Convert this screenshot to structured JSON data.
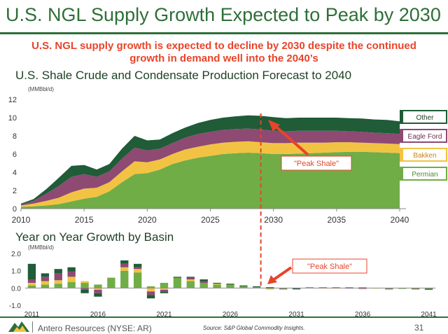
{
  "header": {
    "title": "U.S. NGL Supply Growth Expected to Peak by 2030",
    "subtitle_line1": "U.S. NGL supply growth is expected to decline by 2030 despite the continued",
    "subtitle_line2": "growth in demand well into the 2040’s"
  },
  "footer": {
    "company": "Antero Resources (NYSE: AR)",
    "source": "Source: S&P Global Commodity Insights.",
    "page": "31"
  },
  "colors": {
    "permian": "#70ad47",
    "bakken": "#f2c343",
    "eagle_ford": "#8e4a72",
    "other": "#1f5c37",
    "accent": "#e8442a",
    "title_green": "#2e6f38"
  },
  "chart_data": [
    {
      "type": "area",
      "title": "U.S. Shale Crude and Condensate Production Forecast to 2040",
      "ylabel": "(MMBbl/d)",
      "xlabel": "",
      "xlim": [
        2010,
        2040.5
      ],
      "ylim": [
        0,
        12
      ],
      "xticks": [
        2010,
        2015,
        2020,
        2025,
        2030,
        2035,
        2040
      ],
      "yticks": [
        0,
        2,
        4,
        6,
        8,
        10,
        12
      ],
      "x": [
        2010,
        2011,
        2012,
        2013,
        2014,
        2015,
        2016,
        2017,
        2018,
        2019,
        2020,
        2021,
        2022,
        2023,
        2024,
        2025,
        2026,
        2027,
        2028,
        2029,
        2030,
        2031,
        2032,
        2033,
        2034,
        2035,
        2036,
        2037,
        2038,
        2039,
        2040
      ],
      "series": [
        {
          "name": "Permian",
          "values": [
            0.2,
            0.25,
            0.35,
            0.5,
            0.8,
            1.1,
            1.3,
            1.9,
            2.9,
            3.8,
            3.9,
            4.3,
            4.9,
            5.3,
            5.6,
            5.8,
            6.0,
            6.1,
            6.15,
            6.1,
            6.0,
            6.0,
            6.05,
            6.1,
            6.15,
            6.2,
            6.25,
            6.25,
            6.2,
            6.15,
            6.1
          ]
        },
        {
          "name": "Bakken",
          "values": [
            0.15,
            0.3,
            0.5,
            0.7,
            1.0,
            1.1,
            1.0,
            1.0,
            1.2,
            1.4,
            1.2,
            1.1,
            1.1,
            1.2,
            1.2,
            1.25,
            1.25,
            1.25,
            1.25,
            1.2,
            1.2,
            1.2,
            1.2,
            1.15,
            1.1,
            1.1,
            1.05,
            1.0,
            1.0,
            1.0,
            1.0
          ]
        },
        {
          "name": "Eagle Ford",
          "values": [
            0.1,
            0.3,
            0.8,
            1.3,
            1.7,
            1.6,
            1.2,
            1.2,
            1.4,
            1.5,
            1.3,
            1.2,
            1.2,
            1.3,
            1.4,
            1.4,
            1.4,
            1.4,
            1.4,
            1.4,
            1.35,
            1.3,
            1.3,
            1.3,
            1.3,
            1.25,
            1.2,
            1.2,
            1.15,
            1.15,
            1.1
          ]
        },
        {
          "name": "Other",
          "values": [
            0.1,
            0.2,
            0.5,
            0.9,
            1.2,
            1.0,
            0.8,
            0.8,
            1.1,
            1.3,
            1.1,
            1.0,
            1.1,
            1.1,
            1.2,
            1.3,
            1.35,
            1.4,
            1.45,
            1.5,
            1.5,
            1.45,
            1.45,
            1.45,
            1.45,
            1.45,
            1.45,
            1.45,
            1.45,
            1.45,
            1.4
          ]
        }
      ],
      "legend_order": [
        "Other",
        "Eagle Ford",
        "Bakken",
        "Permian"
      ],
      "legend_position": "right",
      "annotation": {
        "label": "\"Peak Shale\"",
        "x": 2029
      }
    },
    {
      "type": "bar",
      "stacked": true,
      "title": "Year on Year Growth by Basin",
      "ylabel": "(MMBbl/d)",
      "xlabel": "",
      "ylim": [
        -1.0,
        2.0
      ],
      "yticks": [
        -1.0,
        0.0,
        1.0,
        2.0
      ],
      "ytick_labels": [
        "-1.0",
        "0.0",
        "1.0",
        "2.0"
      ],
      "xticks": [
        2011,
        2016,
        2021,
        2026,
        2031,
        2036,
        2041
      ],
      "categories": [
        2011,
        2012,
        2013,
        2014,
        2015,
        2016,
        2017,
        2018,
        2019,
        2020,
        2021,
        2022,
        2023,
        2024,
        2025,
        2026,
        2027,
        2028,
        2029,
        2030,
        2031,
        2032,
        2033,
        2034,
        2035,
        2036,
        2037,
        2038,
        2039,
        2040,
        2041
      ],
      "series": [
        {
          "name": "Permian",
          "values": [
            0.15,
            0.2,
            0.25,
            0.35,
            0.3,
            0.2,
            0.6,
            1.0,
            0.9,
            0.1,
            0.3,
            0.6,
            0.4,
            0.3,
            0.2,
            0.2,
            0.1,
            0.05,
            -0.05,
            -0.05,
            0.0,
            0.05,
            0.05,
            0.05,
            0.05,
            0.05,
            0.0,
            -0.05,
            -0.05,
            -0.05,
            -0.05
          ]
        },
        {
          "name": "Bakken",
          "values": [
            0.15,
            0.2,
            0.2,
            0.3,
            0.1,
            -0.1,
            0.0,
            0.2,
            0.2,
            -0.2,
            -0.1,
            0.0,
            0.1,
            0.0,
            0.05,
            0.0,
            0.0,
            0.0,
            -0.02,
            0.0,
            0.0,
            0.0,
            -0.02,
            -0.02,
            0.0,
            -0.02,
            -0.02,
            0.0,
            0.0,
            0.0,
            0.0
          ]
        },
        {
          "name": "Eagle Ford",
          "values": [
            0.2,
            0.25,
            0.4,
            0.3,
            -0.1,
            -0.2,
            0.0,
            0.2,
            0.1,
            -0.2,
            -0.1,
            0.0,
            0.1,
            0.1,
            0.0,
            0.0,
            0.0,
            0.0,
            0.0,
            -0.03,
            -0.03,
            0.0,
            0.0,
            0.0,
            -0.03,
            -0.03,
            0.0,
            -0.03,
            0.0,
            -0.03,
            0.0
          ]
        },
        {
          "name": "Other",
          "values": [
            0.9,
            0.2,
            0.25,
            0.25,
            -0.2,
            -0.2,
            0.0,
            0.2,
            0.2,
            -0.2,
            -0.1,
            0.05,
            0.05,
            0.1,
            0.05,
            0.05,
            0.05,
            0.05,
            0.05,
            0.0,
            -0.05,
            0.0,
            0.0,
            0.0,
            0.0,
            0.0,
            0.0,
            0.0,
            0.0,
            0.0,
            -0.05
          ]
        }
      ],
      "annotation": {
        "label": "\"Peak Shale\"",
        "x": 2029
      }
    }
  ]
}
